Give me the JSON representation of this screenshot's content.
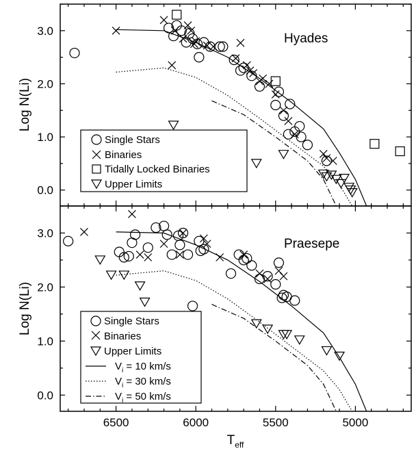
{
  "chart_data": [
    {
      "type": "scatter",
      "cluster_label": "Hyades",
      "xlabel": "",
      "ylabel": "Log N(Li)",
      "x_reversed": true,
      "xlim": [
        6850,
        4650
      ],
      "ylim": [
        -0.3,
        3.5
      ],
      "x_ticks": [
        "6500",
        "6000",
        "5500",
        "5000"
      ],
      "y_ticks": [
        "0.0",
        "1.0",
        "2.0",
        "3.0"
      ],
      "legend_position": "bottom-left",
      "legend": {
        "single": "Single Stars",
        "binary": "Binaries",
        "locked": "Tidally Locked Binaries",
        "limit": "Upper Limits"
      },
      "series": [
        {
          "key": "single",
          "marker": "circle",
          "points": [
            [
              6760,
              2.58
            ],
            [
              6170,
              3.05
            ],
            [
              6120,
              3.1
            ],
            [
              6090,
              3.0
            ],
            [
              6140,
              2.9
            ],
            [
              6060,
              2.78
            ],
            [
              6040,
              2.95
            ],
            [
              6020,
              2.85
            ],
            [
              5990,
              2.75
            ],
            [
              5950,
              2.78
            ],
            [
              5980,
              2.5
            ],
            [
              5910,
              2.7
            ],
            [
              5850,
              2.7
            ],
            [
              5830,
              2.7
            ],
            [
              5760,
              2.45
            ],
            [
              5720,
              2.25
            ],
            [
              5700,
              2.3
            ],
            [
              5650,
              2.15
            ],
            [
              5600,
              1.95
            ],
            [
              5500,
              1.6
            ],
            [
              5480,
              1.85
            ],
            [
              5450,
              1.4
            ],
            [
              5420,
              1.05
            ],
            [
              5410,
              1.62
            ],
            [
              5380,
              1.1
            ],
            [
              5350,
              1.2
            ],
            [
              5340,
              1.0
            ],
            [
              5300,
              0.85
            ],
            [
              5180,
              0.55
            ]
          ]
        },
        {
          "key": "binary",
          "marker": "x",
          "points": [
            [
              6500,
              3.0
            ],
            [
              6200,
              3.2
            ],
            [
              6130,
              3.0
            ],
            [
              6080,
              2.85
            ],
            [
              6050,
              3.1
            ],
            [
              6030,
              3.0
            ],
            [
              6010,
              2.75
            ],
            [
              6000,
              2.8
            ],
            [
              5930,
              2.72
            ],
            [
              5890,
              2.7
            ],
            [
              5750,
              2.48
            ],
            [
              5720,
              2.77
            ],
            [
              5680,
              2.35
            ],
            [
              5660,
              2.25
            ],
            [
              5640,
              2.2
            ],
            [
              5600,
              2.05
            ],
            [
              5580,
              2.1
            ],
            [
              5540,
              2.0
            ],
            [
              5500,
              1.8
            ],
            [
              5450,
              1.5
            ],
            [
              5420,
              1.3
            ],
            [
              5380,
              1.05
            ],
            [
              5200,
              0.68
            ],
            [
              5180,
              0.6
            ],
            [
              5140,
              0.55
            ],
            [
              6150,
              2.35
            ]
          ]
        },
        {
          "key": "locked",
          "marker": "square",
          "points": [
            [
              6120,
              3.3
            ],
            [
              5500,
              2.05
            ],
            [
              4880,
              0.87
            ],
            [
              4720,
              0.73
            ]
          ]
        },
        {
          "key": "limit",
          "marker": "triangle",
          "points": [
            [
              6140,
              1.22
            ],
            [
              5620,
              0.5
            ],
            [
              5450,
              0.67
            ],
            [
              5200,
              0.3
            ],
            [
              5180,
              0.25
            ],
            [
              5150,
              0.28
            ],
            [
              5120,
              0.2
            ],
            [
              5090,
              0.12
            ],
            [
              5070,
              0.22
            ],
            [
              5040,
              0.05
            ],
            [
              5030,
              0.0
            ],
            [
              5020,
              -0.05
            ]
          ]
        }
      ],
      "tracks": [
        {
          "style": "solid",
          "label": "V_i = 10 km/s",
          "points": [
            [
              6500,
              3.02
            ],
            [
              6200,
              3.0
            ],
            [
              6000,
              2.78
            ],
            [
              5800,
              2.5
            ],
            [
              5600,
              2.1
            ],
            [
              5400,
              1.65
            ],
            [
              5200,
              1.15
            ],
            [
              5100,
              0.7
            ],
            [
              5000,
              0.2
            ],
            [
              4930,
              -0.3
            ]
          ]
        },
        {
          "style": "dotted",
          "label": "V_i = 30 km/s",
          "points": [
            [
              6500,
              2.22
            ],
            [
              6200,
              2.3
            ],
            [
              6000,
              2.12
            ],
            [
              5800,
              1.78
            ],
            [
              5600,
              1.35
            ],
            [
              5400,
              0.9
            ],
            [
              5200,
              0.45
            ],
            [
              5100,
              0.1
            ],
            [
              5020,
              -0.3
            ]
          ]
        },
        {
          "style": "dashdot",
          "label": "V_i = 50 km/s",
          "points": [
            [
              5900,
              1.68
            ],
            [
              5700,
              1.42
            ],
            [
              5500,
              1.0
            ],
            [
              5300,
              0.55
            ],
            [
              5200,
              0.2
            ],
            [
              5120,
              -0.3
            ]
          ]
        }
      ]
    },
    {
      "type": "scatter",
      "cluster_label": "Praesepe",
      "xlabel": "T",
      "xlabel_sub": "eff",
      "ylabel": "Log N(Li)",
      "x_reversed": true,
      "xlim": [
        6850,
        4650
      ],
      "ylim": [
        -0.3,
        3.5
      ],
      "x_ticks": [
        "6500",
        "6000",
        "5500",
        "5000"
      ],
      "y_ticks": [
        "0.0",
        "1.0",
        "2.0",
        "3.0"
      ],
      "legend_position": "bottom-left",
      "legend": {
        "single": "Single Stars",
        "binary": "Binaries",
        "limit": "Upper Limits",
        "v10_prefix": "V",
        "v10_sub": "i",
        "v10_value": " = 10 km/s",
        "v30_prefix": "V",
        "v30_sub": "i",
        "v30_value": " = 30 km/s",
        "v50_prefix": "V",
        "v50_sub": "i",
        "v50_value": " = 50 km/s"
      },
      "series": [
        {
          "key": "single",
          "marker": "circle",
          "points": [
            [
              6800,
              2.85
            ],
            [
              6480,
              2.65
            ],
            [
              6450,
              2.55
            ],
            [
              6420,
              2.57
            ],
            [
              6400,
              2.82
            ],
            [
              6380,
              2.97
            ],
            [
              6300,
              2.73
            ],
            [
              6250,
              3.1
            ],
            [
              6200,
              3.13
            ],
            [
              6180,
              2.97
            ],
            [
              6150,
              2.6
            ],
            [
              6110,
              2.95
            ],
            [
              6100,
              2.78
            ],
            [
              6080,
              3.0
            ],
            [
              6050,
              2.6
            ],
            [
              6020,
              1.65
            ],
            [
              5980,
              2.85
            ],
            [
              5970,
              2.67
            ],
            [
              5950,
              2.7
            ],
            [
              5780,
              2.25
            ],
            [
              5730,
              2.6
            ],
            [
              5700,
              2.5
            ],
            [
              5680,
              2.53
            ],
            [
              5650,
              2.4
            ],
            [
              5600,
              2.15
            ],
            [
              5550,
              2.2
            ],
            [
              5500,
              2.05
            ],
            [
              5480,
              2.45
            ],
            [
              5460,
              1.8
            ],
            [
              5450,
              1.85
            ],
            [
              5430,
              1.82
            ],
            [
              5380,
              1.75
            ]
          ]
        },
        {
          "key": "binary",
          "marker": "x",
          "points": [
            [
              6700,
              3.02
            ],
            [
              6400,
              3.35
            ],
            [
              6350,
              2.6
            ],
            [
              6300,
              2.55
            ],
            [
              6200,
              2.8
            ],
            [
              6100,
              2.6
            ],
            [
              6080,
              3.0
            ],
            [
              5950,
              2.9
            ],
            [
              5930,
              2.8
            ],
            [
              5850,
              2.55
            ],
            [
              5700,
              2.6
            ],
            [
              5600,
              2.25
            ],
            [
              5550,
              2.15
            ],
            [
              5480,
              2.3
            ],
            [
              5450,
              2.2
            ]
          ]
        },
        {
          "key": "limit",
          "marker": "triangle",
          "points": [
            [
              6600,
              2.5
            ],
            [
              6530,
              2.22
            ],
            [
              6450,
              2.22
            ],
            [
              6350,
              2.02
            ],
            [
              6320,
              1.72
            ],
            [
              5620,
              1.32
            ],
            [
              5550,
              1.22
            ],
            [
              5450,
              1.12
            ],
            [
              5430,
              1.12
            ],
            [
              5350,
              1.02
            ],
            [
              5180,
              0.82
            ],
            [
              5100,
              0.72
            ]
          ]
        }
      ],
      "tracks": [
        {
          "style": "solid",
          "label": "V_i = 10 km/s",
          "points": [
            [
              6500,
              3.02
            ],
            [
              6200,
              3.0
            ],
            [
              6000,
              2.78
            ],
            [
              5800,
              2.5
            ],
            [
              5600,
              2.1
            ],
            [
              5400,
              1.65
            ],
            [
              5200,
              1.15
            ],
            [
              5100,
              0.7
            ],
            [
              5000,
              0.2
            ],
            [
              4930,
              -0.3
            ]
          ]
        },
        {
          "style": "dotted",
          "label": "V_i = 30 km/s",
          "points": [
            [
              6500,
              2.22
            ],
            [
              6200,
              2.3
            ],
            [
              6000,
              2.12
            ],
            [
              5800,
              1.78
            ],
            [
              5600,
              1.35
            ],
            [
              5400,
              0.9
            ],
            [
              5200,
              0.45
            ],
            [
              5100,
              0.1
            ],
            [
              5020,
              -0.3
            ]
          ]
        },
        {
          "style": "dashdot",
          "label": "V_i = 50 km/s",
          "points": [
            [
              5900,
              1.68
            ],
            [
              5700,
              1.42
            ],
            [
              5500,
              1.0
            ],
            [
              5300,
              0.55
            ],
            [
              5200,
              0.2
            ],
            [
              5120,
              -0.3
            ]
          ]
        }
      ]
    }
  ]
}
